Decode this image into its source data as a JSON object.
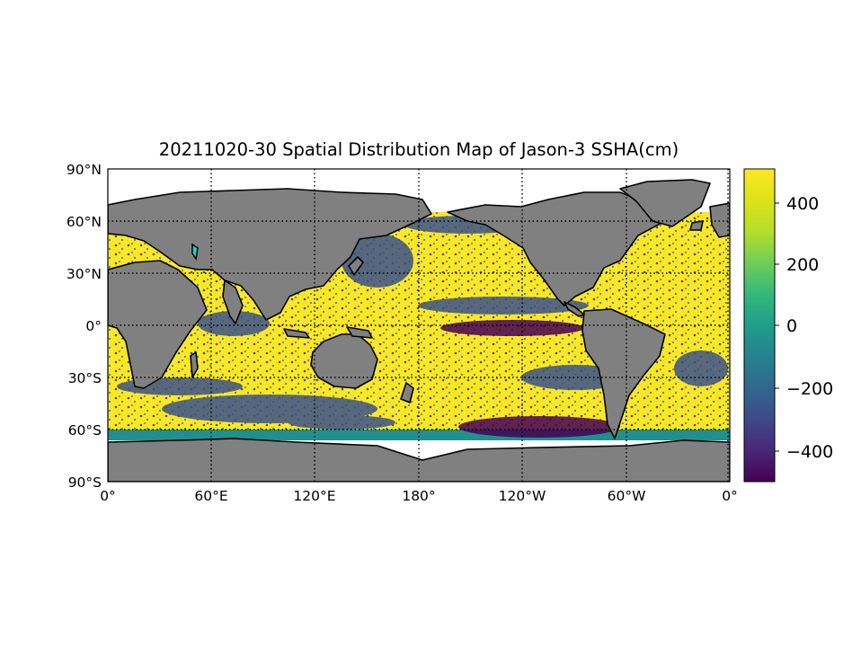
{
  "title": "20211020-30 Spatial Distribution Map of Jason-3 SSHA(cm)",
  "map": {
    "projection": "equirectangular",
    "lon_range": [
      0,
      360
    ],
    "lat_range": [
      -90,
      90
    ],
    "gridlines": "dotted",
    "lat_labels": [
      "90°N",
      "60°N",
      "30°N",
      "0°",
      "30°S",
      "60°S",
      "90°S"
    ],
    "lon_labels": [
      "0°",
      "60°E",
      "120°E",
      "180°",
      "120°W",
      "60°W",
      "0°"
    ],
    "land_color": "#808080",
    "coastline_color": "#000000",
    "ocean_field": "SSHA (cm), viridis colormap, data coverage approx 66°S–66°N"
  },
  "colorbar": {
    "colormap": "viridis",
    "range": [
      -500,
      500
    ],
    "ticks": [
      "400",
      "200",
      "0",
      "−200",
      "−400"
    ],
    "tick_values": [
      400,
      200,
      0,
      -200,
      -400
    ]
  }
}
